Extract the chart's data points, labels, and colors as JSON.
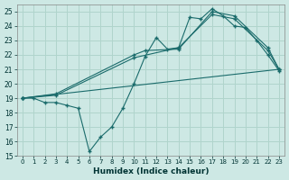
{
  "xlabel": "Humidex (Indice chaleur)",
  "xlim": [
    -0.5,
    23.5
  ],
  "ylim": [
    15,
    25.5
  ],
  "yticks": [
    15,
    16,
    17,
    18,
    19,
    20,
    21,
    22,
    23,
    24,
    25
  ],
  "xticks": [
    0,
    1,
    2,
    3,
    4,
    5,
    6,
    7,
    8,
    9,
    10,
    11,
    12,
    13,
    14,
    15,
    16,
    17,
    18,
    19,
    20,
    21,
    22,
    23
  ],
  "bg_color": "#cde8e4",
  "grid_color": "#b0d4cc",
  "line_color": "#1a6b6b",
  "series": [
    {
      "x": [
        0,
        1,
        2,
        3,
        4,
        5,
        6,
        7,
        8,
        9,
        10,
        11,
        12,
        13,
        14,
        15,
        16,
        17,
        18,
        19,
        20,
        21,
        22,
        23
      ],
      "y": [
        19,
        19,
        18.7,
        18.7,
        18.5,
        18.3,
        15.3,
        16.3,
        17.0,
        18.3,
        20.0,
        21.9,
        23.2,
        22.4,
        22.5,
        24.6,
        24.5,
        25.2,
        24.7,
        24.0,
        23.9,
        23.0,
        22.0,
        20.9
      ]
    },
    {
      "x": [
        0,
        3,
        10,
        14,
        17,
        19,
        22,
        23
      ],
      "y": [
        19,
        19.2,
        21.8,
        22.5,
        24.8,
        24.5,
        22.3,
        21.0
      ]
    },
    {
      "x": [
        0,
        23
      ],
      "y": [
        19,
        21.0
      ]
    },
    {
      "x": [
        0,
        3,
        10,
        11,
        14,
        17,
        19,
        22,
        23
      ],
      "y": [
        19,
        19.3,
        22.0,
        22.3,
        22.4,
        25.0,
        24.7,
        22.5,
        21.0
      ]
    }
  ]
}
